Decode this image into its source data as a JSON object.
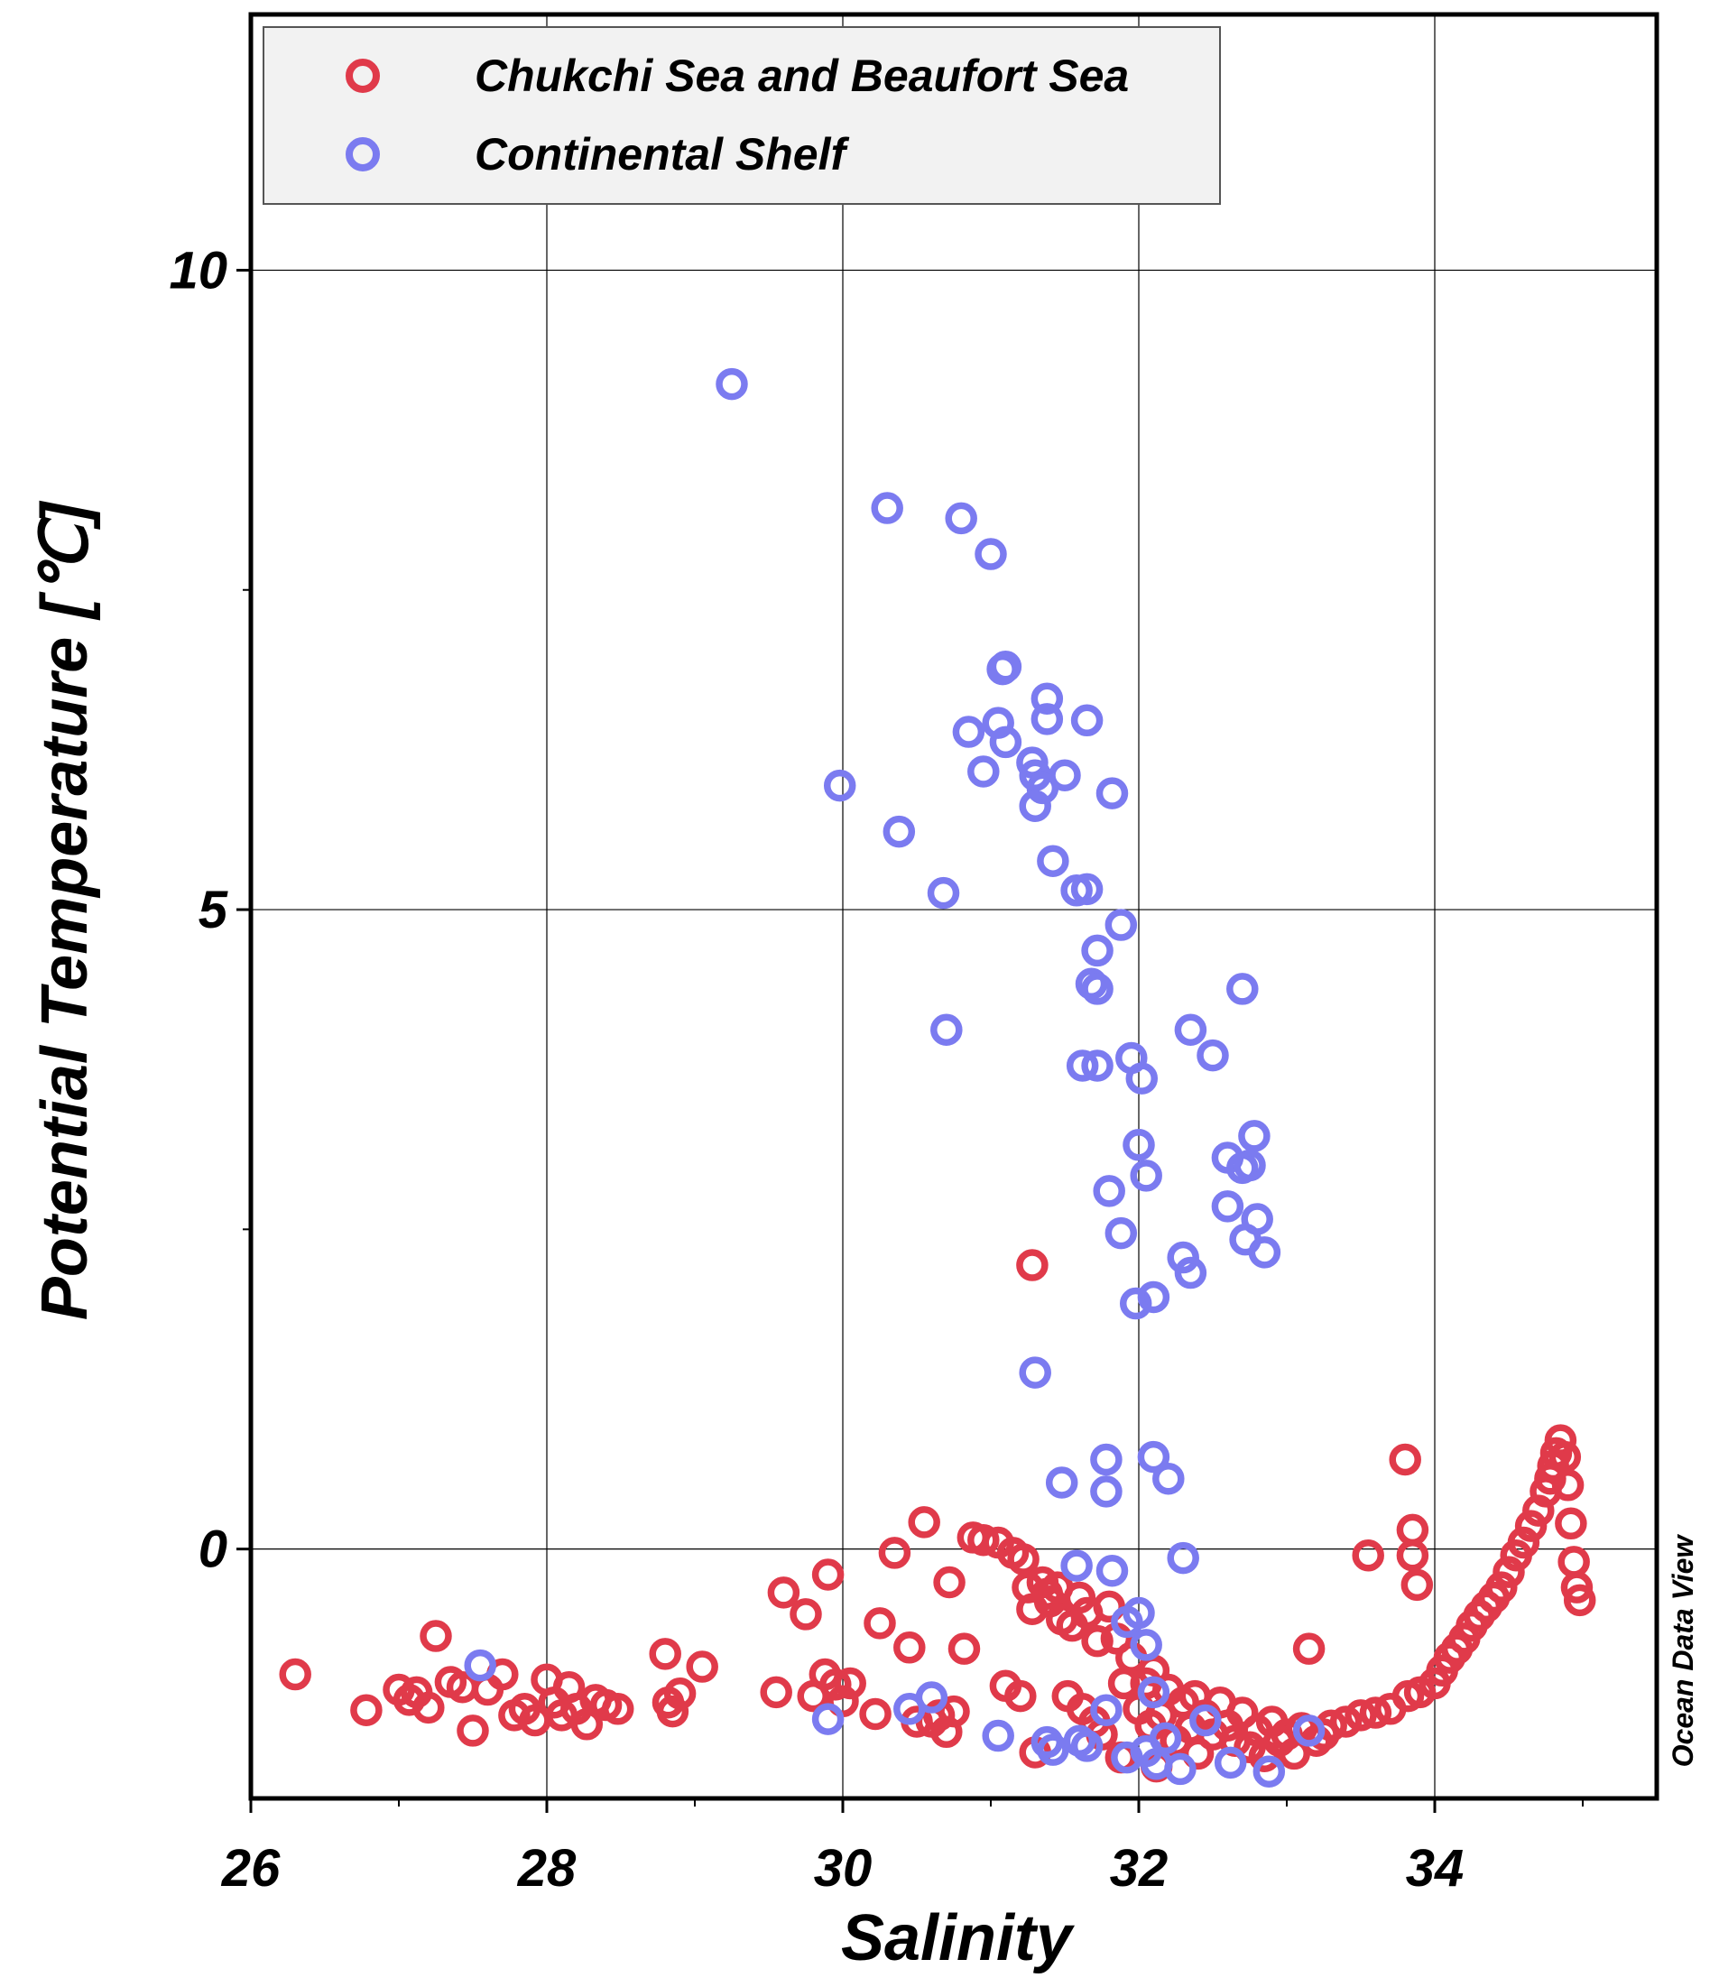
{
  "chart_data": {
    "type": "scatter",
    "xlabel": "Salinity",
    "ylabel": "Potential Temperature [℃]",
    "xlim": [
      26,
      35.5
    ],
    "ylim": [
      -1.95,
      12
    ],
    "x_ticks": [
      "26",
      "28",
      "30",
      "32",
      "34"
    ],
    "y_ticks": [
      "0",
      "5",
      "10"
    ],
    "grid": true,
    "legend_position": "top-left",
    "watermark": "Ocean Data View",
    "series": [
      {
        "name": "Chukchi Sea and Beaufort Sea",
        "color": "#e03a4a",
        "points": [
          [
            26.3,
            -0.98
          ],
          [
            26.78,
            -1.26
          ],
          [
            27.0,
            -1.1
          ],
          [
            27.07,
            -1.18
          ],
          [
            27.12,
            -1.12
          ],
          [
            27.2,
            -1.24
          ],
          [
            27.25,
            -0.68
          ],
          [
            27.35,
            -1.04
          ],
          [
            27.43,
            -1.08
          ],
          [
            27.5,
            -1.42
          ],
          [
            27.6,
            -1.1
          ],
          [
            27.7,
            -0.98
          ],
          [
            27.78,
            -1.3
          ],
          [
            27.85,
            -1.25
          ],
          [
            27.92,
            -1.34
          ],
          [
            28.0,
            -1.02
          ],
          [
            28.05,
            -1.2
          ],
          [
            28.1,
            -1.3
          ],
          [
            28.15,
            -1.08
          ],
          [
            28.2,
            -1.25
          ],
          [
            28.27,
            -1.37
          ],
          [
            28.33,
            -1.18
          ],
          [
            28.4,
            -1.22
          ],
          [
            28.48,
            -1.25
          ],
          [
            28.8,
            -0.82
          ],
          [
            28.82,
            -1.2
          ],
          [
            28.85,
            -1.27
          ],
          [
            28.9,
            -1.13
          ],
          [
            29.05,
            -0.92
          ],
          [
            29.55,
            -1.12
          ],
          [
            29.6,
            -0.34
          ],
          [
            29.75,
            -0.51
          ],
          [
            29.8,
            -1.15
          ],
          [
            29.88,
            -0.98
          ],
          [
            29.9,
            -0.2
          ],
          [
            29.95,
            -1.06
          ],
          [
            30.0,
            -1.19
          ],
          [
            30.05,
            -1.05
          ],
          [
            30.22,
            -1.29
          ],
          [
            30.25,
            -0.58
          ],
          [
            30.35,
            -0.03
          ],
          [
            30.45,
            -0.77
          ],
          [
            30.5,
            -1.35
          ],
          [
            30.55,
            0.21
          ],
          [
            30.6,
            -1.35
          ],
          [
            30.65,
            -1.3
          ],
          [
            30.7,
            -1.43
          ],
          [
            30.75,
            -1.27
          ],
          [
            30.72,
            -0.26
          ],
          [
            30.82,
            -0.78
          ],
          [
            30.88,
            0.09
          ],
          [
            30.95,
            0.07
          ],
          [
            31.05,
            0.05
          ],
          [
            31.1,
            -1.07
          ],
          [
            31.15,
            -0.03
          ],
          [
            31.2,
            -1.15
          ],
          [
            31.22,
            -0.08
          ],
          [
            31.25,
            -0.3
          ],
          [
            31.28,
            -0.47
          ],
          [
            31.3,
            -1.59
          ],
          [
            31.35,
            -0.26
          ],
          [
            31.38,
            -0.35
          ],
          [
            31.4,
            -0.41
          ],
          [
            31.45,
            -0.3
          ],
          [
            31.48,
            -0.55
          ],
          [
            31.52,
            -1.15
          ],
          [
            31.55,
            -0.6
          ],
          [
            31.6,
            -0.38
          ],
          [
            31.62,
            -1.25
          ],
          [
            31.65,
            -0.5
          ],
          [
            31.7,
            -1.35
          ],
          [
            31.72,
            -0.72
          ],
          [
            31.75,
            -1.45
          ],
          [
            31.8,
            -0.45
          ],
          [
            31.85,
            -0.7
          ],
          [
            31.88,
            -1.63
          ],
          [
            31.9,
            -1.05
          ],
          [
            31.95,
            -0.85
          ],
          [
            32.0,
            -1.25
          ],
          [
            32.05,
            -1.05
          ],
          [
            32.08,
            -1.38
          ],
          [
            32.1,
            -0.95
          ],
          [
            32.12,
            -1.7
          ],
          [
            32.15,
            -1.3
          ],
          [
            32.2,
            -1.1
          ],
          [
            32.25,
            -1.5
          ],
          [
            32.3,
            -1.2
          ],
          [
            32.35,
            -1.4
          ],
          [
            32.38,
            -1.15
          ],
          [
            32.4,
            -1.6
          ],
          [
            32.45,
            -1.3
          ],
          [
            32.5,
            -1.45
          ],
          [
            32.55,
            -1.2
          ],
          [
            32.6,
            -1.38
          ],
          [
            32.65,
            -1.5
          ],
          [
            32.7,
            -1.28
          ],
          [
            32.75,
            -1.55
          ],
          [
            32.8,
            -1.42
          ],
          [
            32.85,
            -1.62
          ],
          [
            32.9,
            -1.35
          ],
          [
            32.95,
            -1.5
          ],
          [
            33.0,
            -1.45
          ],
          [
            33.05,
            -1.6
          ],
          [
            33.1,
            -1.4
          ],
          [
            33.15,
            -0.78
          ],
          [
            33.2,
            -1.5
          ],
          [
            33.25,
            -1.45
          ],
          [
            33.3,
            -1.38
          ],
          [
            33.4,
            -1.35
          ],
          [
            33.5,
            -1.3
          ],
          [
            33.55,
            -0.05
          ],
          [
            33.6,
            -1.28
          ],
          [
            33.7,
            -1.25
          ],
          [
            33.8,
            0.7
          ],
          [
            33.82,
            -1.15
          ],
          [
            33.85,
            0.15
          ],
          [
            33.85,
            -0.05
          ],
          [
            33.88,
            -0.28
          ],
          [
            33.9,
            -1.12
          ],
          [
            34.0,
            -1.05
          ],
          [
            34.05,
            -0.95
          ],
          [
            34.1,
            -0.85
          ],
          [
            34.15,
            -0.78
          ],
          [
            34.2,
            -0.7
          ],
          [
            34.25,
            -0.6
          ],
          [
            34.3,
            -0.52
          ],
          [
            34.35,
            -0.45
          ],
          [
            34.4,
            -0.38
          ],
          [
            34.45,
            -0.3
          ],
          [
            34.5,
            -0.18
          ],
          [
            34.55,
            -0.05
          ],
          [
            34.6,
            0.05
          ],
          [
            34.65,
            0.18
          ],
          [
            34.7,
            0.3
          ],
          [
            34.75,
            0.45
          ],
          [
            34.78,
            0.55
          ],
          [
            34.8,
            0.65
          ],
          [
            34.82,
            0.75
          ],
          [
            34.85,
            0.85
          ],
          [
            34.88,
            0.72
          ],
          [
            34.9,
            0.5
          ],
          [
            34.92,
            0.2
          ],
          [
            34.94,
            -0.1
          ],
          [
            34.96,
            -0.3
          ],
          [
            34.98,
            -0.4
          ],
          [
            31.28,
            2.22
          ]
        ]
      },
      {
        "name": "Continental Shelf",
        "color": "#7b7bf0",
        "points": [
          [
            29.25,
            9.11
          ],
          [
            30.3,
            8.14
          ],
          [
            30.8,
            8.06
          ],
          [
            31.0,
            7.78
          ],
          [
            31.08,
            6.88
          ],
          [
            31.1,
            6.9
          ],
          [
            30.85,
            6.39
          ],
          [
            31.05,
            6.46
          ],
          [
            31.1,
            6.31
          ],
          [
            31.38,
            6.65
          ],
          [
            31.38,
            6.49
          ],
          [
            31.65,
            6.48
          ],
          [
            30.95,
            6.08
          ],
          [
            31.28,
            6.15
          ],
          [
            31.3,
            6.05
          ],
          [
            31.35,
            5.95
          ],
          [
            31.5,
            6.05
          ],
          [
            31.3,
            5.81
          ],
          [
            31.82,
            5.91
          ],
          [
            29.98,
            5.97
          ],
          [
            30.38,
            5.61
          ],
          [
            30.68,
            5.13
          ],
          [
            31.42,
            5.38
          ],
          [
            31.58,
            5.15
          ],
          [
            31.65,
            5.16
          ],
          [
            31.88,
            4.88
          ],
          [
            31.72,
            4.68
          ],
          [
            31.68,
            4.42
          ],
          [
            31.72,
            4.38
          ],
          [
            32.7,
            4.38
          ],
          [
            30.7,
            4.06
          ],
          [
            32.35,
            4.06
          ],
          [
            32.5,
            3.86
          ],
          [
            31.62,
            3.78
          ],
          [
            31.72,
            3.78
          ],
          [
            31.95,
            3.84
          ],
          [
            32.02,
            3.68
          ],
          [
            32.0,
            3.16
          ],
          [
            32.6,
            3.06
          ],
          [
            32.7,
            2.98
          ],
          [
            32.75,
            3.0
          ],
          [
            32.78,
            3.23
          ],
          [
            32.05,
            2.92
          ],
          [
            31.8,
            2.8
          ],
          [
            32.6,
            2.68
          ],
          [
            32.8,
            2.58
          ],
          [
            31.88,
            2.47
          ],
          [
            32.72,
            2.42
          ],
          [
            32.85,
            2.32
          ],
          [
            32.3,
            2.28
          ],
          [
            32.35,
            2.16
          ],
          [
            31.98,
            1.92
          ],
          [
            32.1,
            1.97
          ],
          [
            31.3,
            1.38
          ],
          [
            31.78,
            0.7
          ],
          [
            32.1,
            0.72
          ],
          [
            31.48,
            0.52
          ],
          [
            31.78,
            0.45
          ],
          [
            32.2,
            0.55
          ],
          [
            31.58,
            -0.13
          ],
          [
            31.82,
            -0.17
          ],
          [
            32.3,
            -0.07
          ],
          [
            31.92,
            -0.57
          ],
          [
            32.0,
            -0.5
          ],
          [
            32.05,
            -0.75
          ],
          [
            27.55,
            -0.91
          ],
          [
            29.9,
            -1.33
          ],
          [
            30.45,
            -1.25
          ],
          [
            30.6,
            -1.16
          ],
          [
            31.05,
            -1.46
          ],
          [
            31.38,
            -1.51
          ],
          [
            31.42,
            -1.57
          ],
          [
            31.6,
            -1.5
          ],
          [
            31.65,
            -1.54
          ],
          [
            31.78,
            -1.26
          ],
          [
            31.92,
            -1.63
          ],
          [
            32.05,
            -1.58
          ],
          [
            32.12,
            -1.68
          ],
          [
            32.18,
            -1.48
          ],
          [
            32.28,
            -1.72
          ],
          [
            32.45,
            -1.34
          ],
          [
            32.62,
            -1.67
          ],
          [
            32.88,
            -1.74
          ],
          [
            33.15,
            -1.42
          ],
          [
            32.1,
            -1.12
          ]
        ]
      }
    ]
  }
}
